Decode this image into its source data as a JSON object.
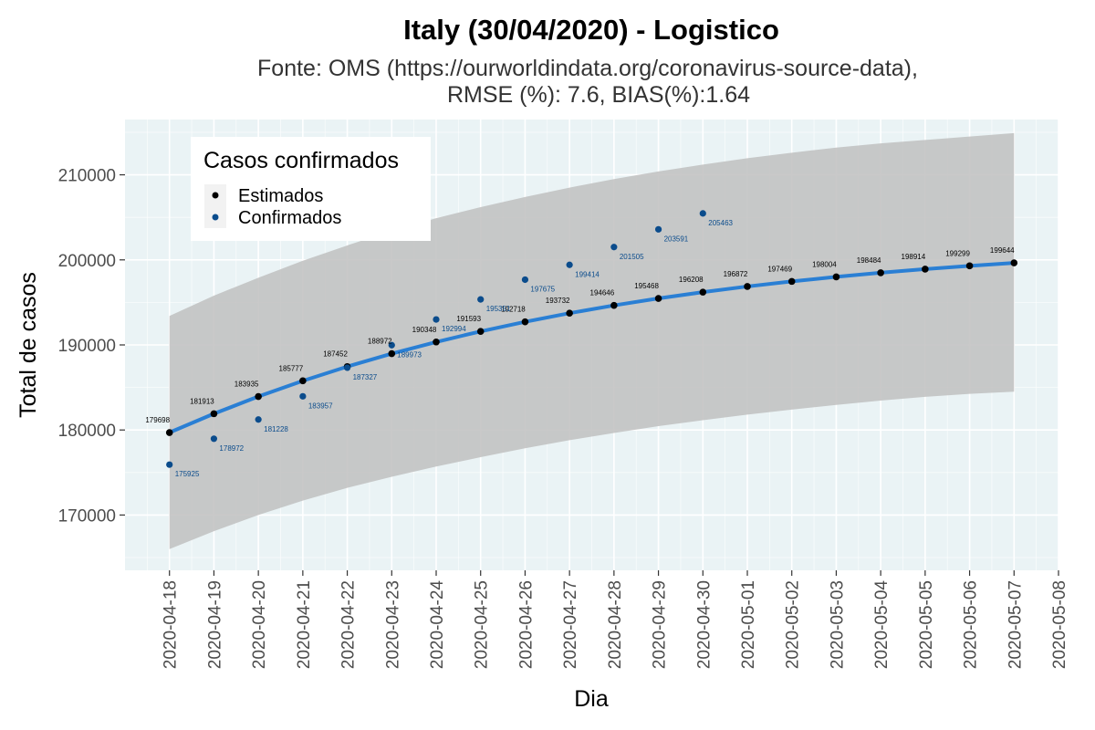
{
  "colors": {
    "panel_bg": "#eaf3f5",
    "grid_major": "#ffffff",
    "band": "#bfbfbf",
    "fit_line": "#2a7fd4",
    "estimated_point": "#000000",
    "confirmed_point": "#0b4c8c",
    "legend_bg": "#ffffff"
  },
  "chart_data": {
    "type": "line",
    "title": "Italy (30/04/2020) - Logistico",
    "subtitle_line1": "Fonte: OMS (https://ourworldindata.org/coronavirus-source-data),",
    "subtitle_line2": "RMSE (%): 7.6, BIAS(%):1.64",
    "xlabel": "Dia",
    "ylabel": "Total de casos",
    "x_ticks": [
      "2020-04-18",
      "2020-04-19",
      "2020-04-20",
      "2020-04-21",
      "2020-04-22",
      "2020-04-23",
      "2020-04-24",
      "2020-04-25",
      "2020-04-26",
      "2020-04-27",
      "2020-04-28",
      "2020-04-29",
      "2020-04-30",
      "2020-05-01",
      "2020-05-02",
      "2020-05-03",
      "2020-05-04",
      "2020-05-05",
      "2020-05-06",
      "2020-05-07",
      "2020-05-08"
    ],
    "xlim": [
      "2020-04-17",
      "2020-05-08"
    ],
    "y_ticks": [
      170000,
      180000,
      190000,
      200000,
      210000
    ],
    "ylim": [
      163500,
      216500
    ],
    "grid": true,
    "legend": {
      "title": "Casos confirmados",
      "position": "top-left",
      "entries": [
        "Estimados",
        "Confirmados"
      ]
    },
    "series": [
      {
        "name": "Estimados",
        "x": [
          "2020-04-18",
          "2020-04-19",
          "2020-04-20",
          "2020-04-21",
          "2020-04-22",
          "2020-04-23",
          "2020-04-24",
          "2020-04-25",
          "2020-04-26",
          "2020-04-27",
          "2020-04-28",
          "2020-04-29",
          "2020-04-30",
          "2020-05-01",
          "2020-05-02",
          "2020-05-03",
          "2020-05-04",
          "2020-05-05",
          "2020-05-06",
          "2020-05-07"
        ],
        "values": [
          179698,
          181913,
          183935,
          185777,
          187452,
          188972,
          190348,
          191593,
          192718,
          193732,
          194646,
          195468,
          196208,
          196872,
          197469,
          198004,
          198484,
          198914,
          199299,
          199644
        ]
      },
      {
        "name": "Confirmados",
        "x": [
          "2020-04-18",
          "2020-04-19",
          "2020-04-20",
          "2020-04-21",
          "2020-04-22",
          "2020-04-23",
          "2020-04-24",
          "2020-04-25",
          "2020-04-26",
          "2020-04-27",
          "2020-04-28",
          "2020-04-29",
          "2020-04-30"
        ],
        "values": [
          175925,
          178972,
          181228,
          183957,
          187327,
          189973,
          192994,
          195351,
          197675,
          199414,
          201505,
          203591,
          205463
        ]
      }
    ],
    "confidence_band": {
      "x": [
        "2020-04-18",
        "2020-04-19",
        "2020-04-20",
        "2020-04-21",
        "2020-04-22",
        "2020-04-23",
        "2020-04-24",
        "2020-04-25",
        "2020-04-26",
        "2020-04-27",
        "2020-04-28",
        "2020-04-29",
        "2020-04-30",
        "2020-05-01",
        "2020-05-02",
        "2020-05-03",
        "2020-05-04",
        "2020-05-05",
        "2020-05-06",
        "2020-05-07"
      ],
      "lower": [
        166000,
        168100,
        170000,
        171700,
        173200,
        174500,
        175700,
        176800,
        177850,
        178800,
        179650,
        180450,
        181150,
        181800,
        182400,
        182950,
        183450,
        183900,
        184250,
        184500
      ],
      "upper": [
        193400,
        195800,
        197900,
        199900,
        201700,
        203400,
        204900,
        206200,
        207400,
        208500,
        209500,
        210400,
        211200,
        211950,
        212600,
        213200,
        213700,
        214100,
        214500,
        214900
      ]
    }
  }
}
